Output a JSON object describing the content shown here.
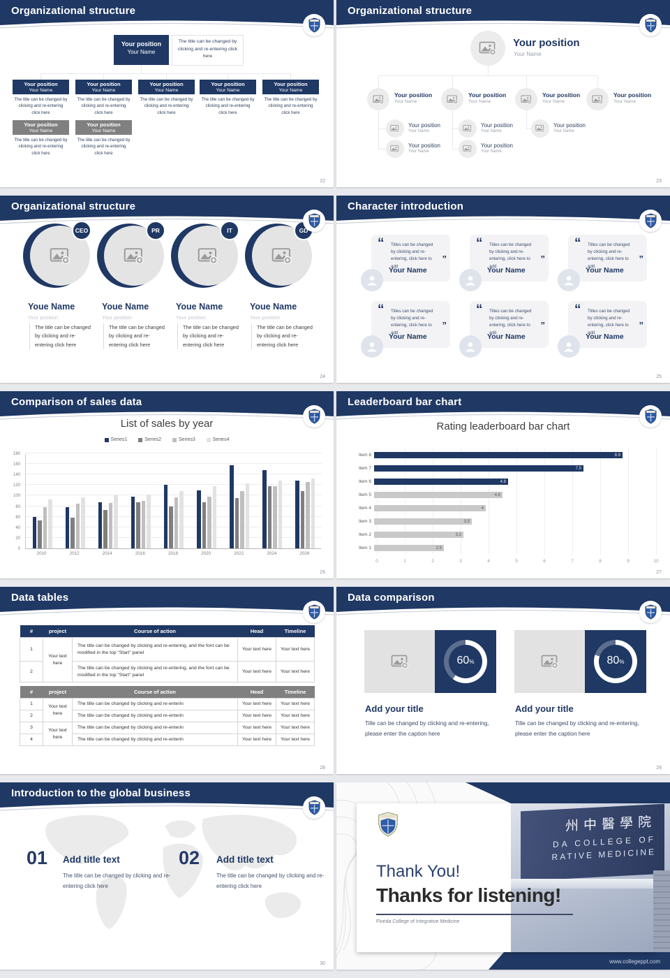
{
  "brand": {
    "navy": "#1f3864",
    "gray_header": "#808080"
  },
  "slides": {
    "s22": {
      "title": "Organizational structure",
      "page": "22",
      "root_position": "Your position",
      "root_name": "Your Name",
      "root_note": "The title can be changed by clicking and re-entering click here",
      "node_position": "Your position",
      "node_name": "Your Name",
      "node_body": "The title can be changed by clicking and re-entering click here"
    },
    "s23": {
      "title": "Organizational structure",
      "page": "23",
      "root_position": "Your position",
      "root_name": "Your Name",
      "node_position": "Your position",
      "node_name": "Your Name"
    },
    "s24": {
      "title": "Organizational structure",
      "page": "24",
      "badges": [
        "CEO",
        "PR",
        "IT",
        "GD"
      ],
      "member_name": "Youe Name",
      "member_position": "Your position",
      "member_body": "The title can be changed by clicking and re-entering click here"
    },
    "s25": {
      "title": "Character introduction",
      "page": "25",
      "open_quote": "“",
      "close_quote": "”",
      "quote": "Titles can be changed by clicking and re-entering, click here to add",
      "name": "Your Name"
    },
    "s26": {
      "title": "Comparison of sales data",
      "page": "26"
    },
    "s27": {
      "title": "Leaderboard bar chart",
      "page": "27"
    },
    "s28": {
      "title": "Data tables",
      "page": "28",
      "columns": [
        "#",
        "project",
        "Course of action",
        "Head",
        "Timeline"
      ],
      "cell_text": "Your text here",
      "long_course": "The title can be changed by clicking and re-entering, and the font can be modified in the top \"Start\" panel",
      "short_course": "The title can be changed by clicking and re-enterin",
      "t1_rows": [
        "1",
        "2"
      ],
      "t2_rows": [
        "1",
        "2",
        "3",
        "4"
      ]
    },
    "s29": {
      "title": "Data comparison",
      "page": "29",
      "panels": [
        {
          "percent": "60"
        },
        {
          "percent": "80"
        }
      ],
      "percent_sign": "%",
      "panel_title": "Add your title",
      "panel_caption": "Tille can be changed by clicking and re-entering, please enter the caption here"
    },
    "s30": {
      "title": "Introduction to the global business",
      "page": "30",
      "items": [
        {
          "num": "01",
          "title": "Add title text",
          "body": "The title can be changed by clicking and re-entering click here"
        },
        {
          "num": "02",
          "title": "Add title text",
          "body": "The title can be changed by clicking and re-entering click here"
        }
      ]
    },
    "s31": {
      "thank_you": "Thank You!",
      "subtitle": "Thanks for listening!",
      "caption": "Florida College of Integrative Medicine",
      "website": "www.collegeppt.com",
      "sign_line1": "州中醫學院",
      "sign_line2": "DA COLLEGE OF",
      "sign_line3": "RATIVE MEDICINE"
    }
  },
  "chart_data": [
    {
      "type": "bar",
      "title": "List of sales by year",
      "categories": [
        "2010",
        "2012",
        "2014",
        "2016",
        "2018",
        "2020",
        "2022",
        "2024",
        "2026"
      ],
      "series": [
        {
          "name": "Series1",
          "color": "#1f3864",
          "values": [
            60,
            78,
            88,
            98,
            120,
            110,
            158,
            148,
            128
          ]
        },
        {
          "name": "Series2",
          "color": "#7f7f7f",
          "values": [
            53,
            58,
            73,
            87,
            80,
            88,
            95,
            118,
            108
          ]
        },
        {
          "name": "Series3",
          "color": "#bfbfbf",
          "values": [
            78,
            85,
            86,
            90,
            97,
            98,
            108,
            118,
            126
          ]
        },
        {
          "name": "Series4",
          "color": "#e2e2e2",
          "values": [
            93,
            97,
            100,
            102,
            108,
            118,
            123,
            128,
            133
          ]
        }
      ],
      "xlabel": "",
      "ylabel": "",
      "ylim": [
        0,
        180
      ],
      "ytick_step": 20,
      "grid": true,
      "legend_position": "top"
    },
    {
      "type": "bar-horizontal",
      "title": "Rating leaderboard bar chart",
      "categories": [
        "Item 8",
        "Item 7",
        "Item 6",
        "Item 5",
        "Item 4",
        "Item 3",
        "Item 2",
        "Item 1"
      ],
      "values": [
        8.9,
        7.5,
        4.8,
        4.6,
        4,
        3.5,
        3.2,
        2.5
      ],
      "colors": [
        "#1f3864",
        "#1f3864",
        "#1f3864",
        "#c9c9c9",
        "#c9c9c9",
        "#c9c9c9",
        "#c9c9c9",
        "#c9c9c9"
      ],
      "xlabel": "",
      "ylabel": "",
      "xlim": [
        0,
        10
      ],
      "xtick_step": 1,
      "grid": true
    }
  ]
}
